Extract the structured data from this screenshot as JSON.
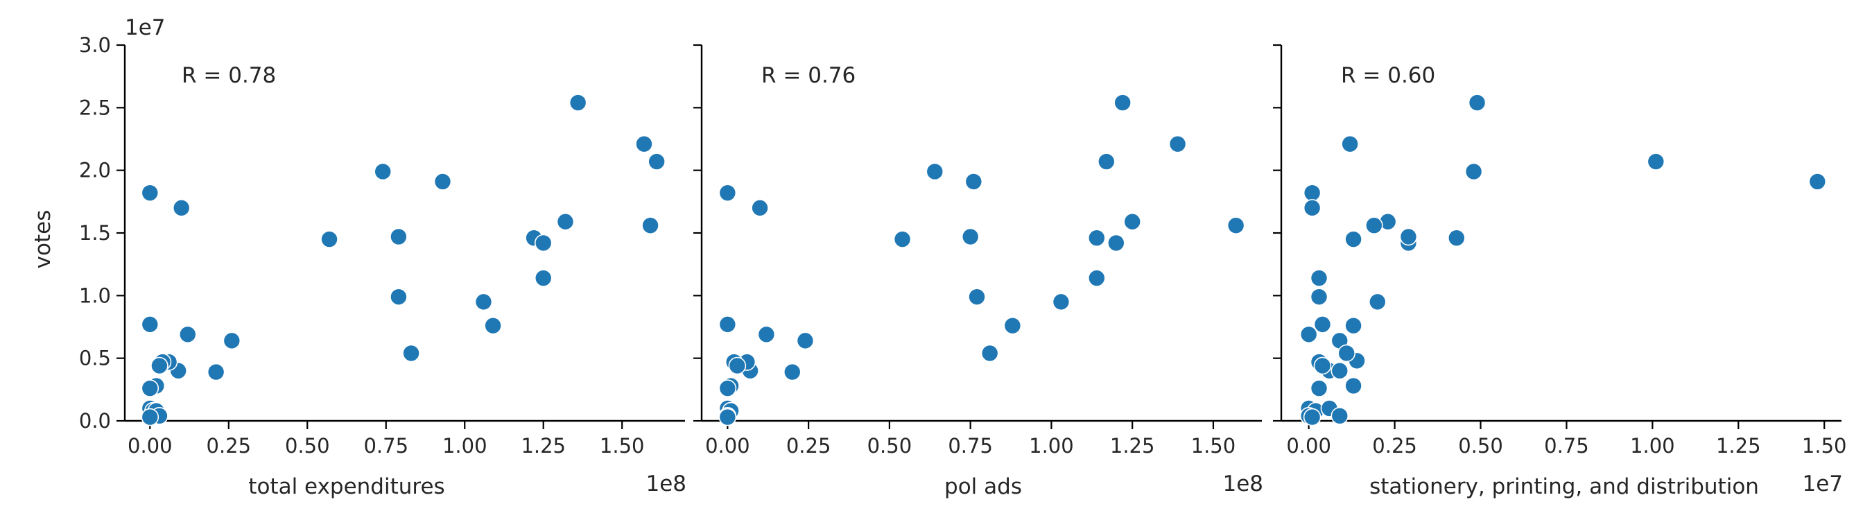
{
  "figure": {
    "y_label": "votes",
    "y_offset": "1e7",
    "marker_color": "#1f77b4",
    "y_ticks": [
      0.0,
      0.5,
      1.0,
      1.5,
      2.0,
      2.5,
      3.0
    ],
    "y_tick_labels": [
      "0.0",
      "0.5",
      "1.0",
      "1.5",
      "2.0",
      "2.5",
      "3.0"
    ]
  },
  "chart_data": [
    {
      "type": "scatter",
      "xlabel": "total expenditures",
      "ylabel": "votes",
      "x_offset": "1e8",
      "annotation": "R = 0.78",
      "xlim": [
        -0.08,
        1.7
      ],
      "ylim": [
        0,
        3.0
      ],
      "x_ticks": [
        0.0,
        0.25,
        0.5,
        0.75,
        1.0,
        1.25,
        1.5
      ],
      "x_tick_labels": [
        "0.00",
        "0.25",
        "0.50",
        "0.75",
        "1.00",
        "1.25",
        "1.50"
      ],
      "x": [
        0.0,
        0.0,
        0.1,
        0.12,
        0.26,
        0.21,
        0.09,
        0.06,
        0.04,
        0.03,
        0.02,
        0.0,
        0.0,
        0.01,
        0.02,
        0.03,
        0.0,
        0.57,
        0.74,
        0.79,
        0.79,
        0.83,
        0.93,
        1.06,
        1.09,
        1.22,
        1.25,
        1.25,
        1.32,
        1.36,
        1.57,
        1.59,
        1.61
      ],
      "y": [
        1.82,
        0.77,
        1.7,
        0.69,
        0.64,
        0.39,
        0.4,
        0.47,
        0.47,
        0.44,
        0.28,
        0.26,
        0.1,
        0.08,
        0.08,
        0.04,
        0.03,
        1.45,
        1.99,
        1.47,
        0.99,
        0.54,
        1.91,
        0.95,
        0.76,
        1.46,
        1.42,
        1.14,
        1.59,
        2.54,
        2.21,
        1.56,
        2.07
      ]
    },
    {
      "type": "scatter",
      "xlabel": "pol ads",
      "ylabel": "",
      "x_offset": "1e8",
      "annotation": "R = 0.76",
      "xlim": [
        -0.08,
        1.65
      ],
      "ylim": [
        0,
        3.0
      ],
      "x_ticks": [
        0.0,
        0.25,
        0.5,
        0.75,
        1.0,
        1.25,
        1.5
      ],
      "x_tick_labels": [
        "0.00",
        "0.25",
        "0.50",
        "0.75",
        "1.00",
        "1.25",
        "1.50"
      ],
      "x": [
        0.0,
        0.0,
        0.1,
        0.12,
        0.24,
        0.2,
        0.07,
        0.06,
        0.02,
        0.03,
        0.01,
        0.0,
        0.0,
        0.01,
        0.0,
        0.0,
        0.54,
        0.64,
        0.75,
        0.77,
        0.76,
        0.81,
        0.88,
        1.03,
        1.14,
        1.14,
        1.17,
        1.2,
        1.25,
        1.22,
        1.39,
        1.57
      ],
      "y": [
        1.82,
        0.77,
        1.7,
        0.69,
        0.64,
        0.39,
        0.4,
        0.47,
        0.47,
        0.44,
        0.28,
        0.26,
        0.1,
        0.08,
        0.04,
        0.03,
        1.45,
        1.99,
        1.47,
        0.99,
        1.91,
        0.54,
        0.76,
        0.95,
        1.46,
        1.14,
        2.07,
        1.42,
        1.59,
        2.54,
        2.21,
        1.56
      ]
    },
    {
      "type": "scatter",
      "xlabel": "stationery, printing, and distribution",
      "ylabel": "",
      "x_offset": "1e7",
      "annotation": "R = 0.60",
      "xlim": [
        -0.08,
        1.55
      ],
      "ylim": [
        0,
        3.0
      ],
      "x_ticks": [
        0.0,
        0.25,
        0.5,
        0.75,
        1.0,
        1.25,
        1.5
      ],
      "x_tick_labels": [
        "0.00",
        "0.25",
        "0.50",
        "0.75",
        "1.00",
        "1.25",
        "1.50"
      ],
      "x": [
        0.01,
        0.01,
        0.0,
        0.03,
        0.03,
        0.12,
        0.13,
        0.2,
        0.29,
        0.29,
        0.23,
        0.19,
        0.14,
        0.43,
        0.48,
        0.49,
        1.01,
        1.48,
        0.04,
        0.13,
        0.09,
        0.11,
        0.03,
        0.06,
        0.04,
        0.09,
        0.03,
        0.13,
        0.0,
        0.02,
        0.06,
        0.09,
        0.0,
        0.01
      ],
      "y": [
        1.82,
        1.7,
        0.69,
        1.14,
        0.99,
        2.21,
        1.45,
        0.95,
        1.42,
        1.47,
        1.59,
        1.56,
        0.48,
        1.46,
        1.99,
        2.54,
        2.07,
        1.91,
        0.77,
        0.76,
        0.64,
        0.54,
        0.47,
        0.4,
        0.44,
        0.4,
        0.26,
        0.28,
        0.1,
        0.08,
        0.1,
        0.04,
        0.04,
        0.03
      ]
    }
  ]
}
